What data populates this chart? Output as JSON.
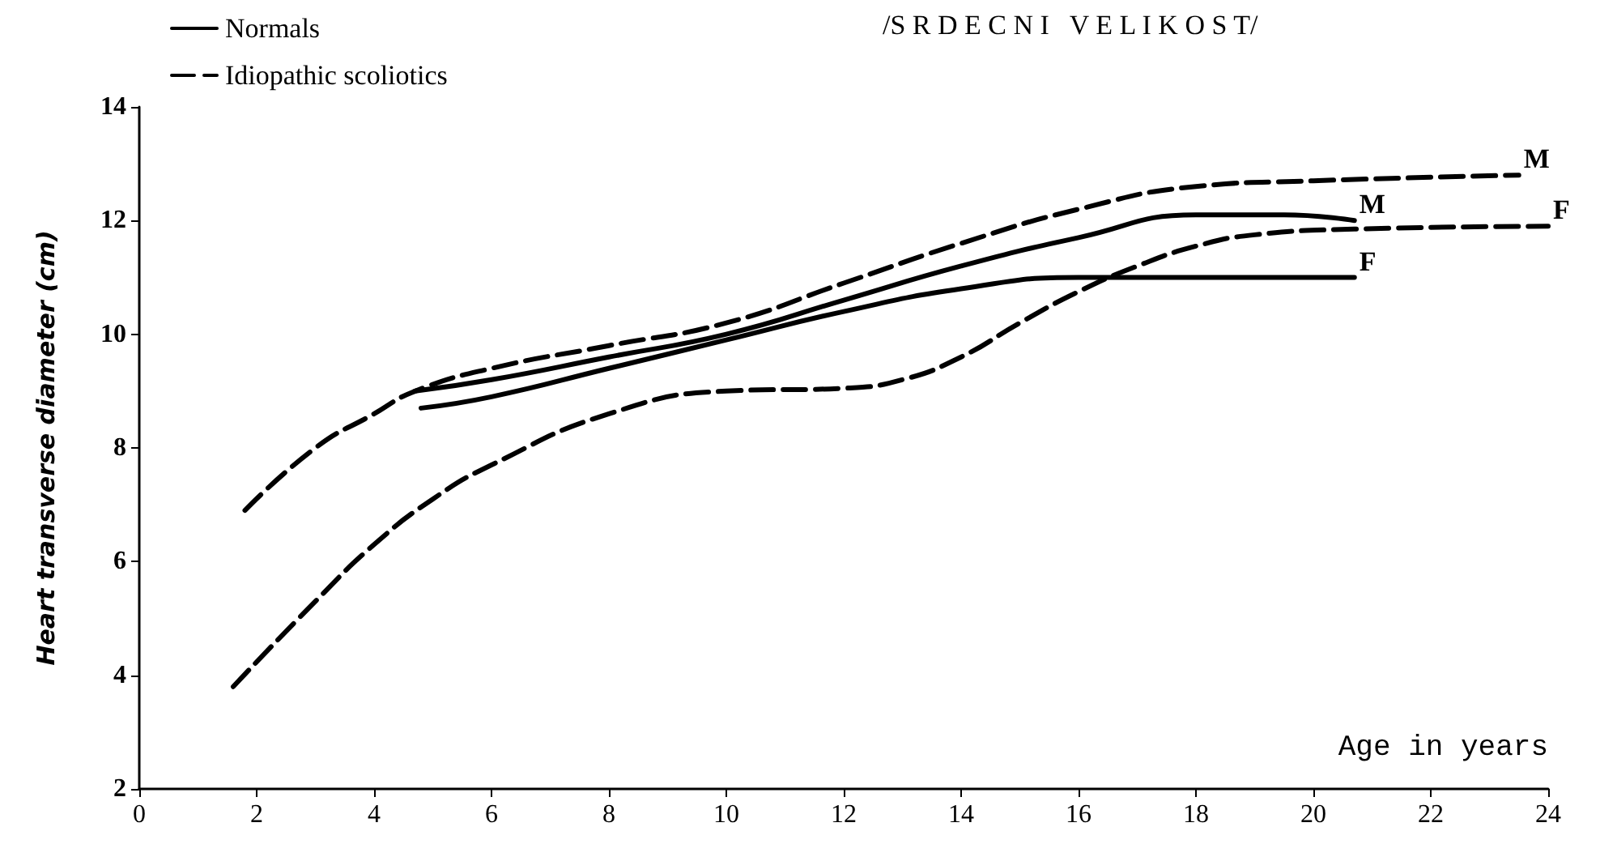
{
  "chart_data": {
    "type": "line",
    "title": "/S R D E C N I   V E L I K O S T/",
    "xlabel": "Age in years",
    "ylabel": "Heart transverse diameter (cm)",
    "xlim": [
      0,
      24
    ],
    "xticks": [
      0,
      2,
      4,
      6,
      8,
      10,
      12,
      14,
      16,
      18,
      20,
      22,
      24
    ],
    "ylim": [
      2,
      14
    ],
    "yticks": [
      2,
      4,
      6,
      8,
      10,
      12,
      14
    ],
    "grid": false,
    "legend": "top left",
    "marker": "none",
    "series": [
      {
        "name": "Normals",
        "color": "#000000",
        "line_style": "solid",
        "x": [
          4.7,
          6,
          8,
          10,
          12,
          14,
          16,
          18,
          19.5,
          20.7
        ],
        "values": [
          9.0,
          9.2,
          9.6,
          10.0,
          10.6,
          11.2,
          11.7,
          12.1,
          12.1,
          12.0
        ]
      },
      {
        "color": "#000000",
        "line_style": "solid",
        "x": [
          4.8,
          6,
          8,
          10,
          12,
          14,
          16,
          18,
          20.7
        ],
        "values": [
          8.7,
          8.9,
          9.4,
          9.9,
          10.4,
          10.8,
          11.0,
          11.0,
          11.0
        ]
      },
      {
        "name": "Idiopathic scoliotics",
        "color": "#000000",
        "line_style": "dashed",
        "x": [
          1.8,
          3,
          4,
          4.7,
          6,
          8,
          10,
          12,
          14,
          16,
          18,
          20,
          23.5
        ],
        "values": [
          6.9,
          8.0,
          8.6,
          9.0,
          9.4,
          9.8,
          10.2,
          10.9,
          11.6,
          12.2,
          12.6,
          12.7,
          12.8
        ]
      },
      {
        "color": "#000000",
        "line_style": "dashed",
        "x": [
          1.6,
          3,
          4,
          5,
          6,
          8,
          10,
          12,
          13,
          14,
          15,
          16,
          17,
          18,
          19,
          20.7,
          24
        ],
        "values": [
          3.8,
          5.3,
          6.3,
          7.1,
          7.7,
          8.6,
          9.0,
          9.05,
          9.2,
          9.6,
          10.2,
          10.75,
          11.2,
          11.55,
          11.75,
          11.85,
          11.9
        ]
      }
    ],
    "annotations": [
      {
        "text": "M",
        "x": 23.5,
        "y": 12.8
      },
      {
        "text": "M",
        "x": 20.7,
        "y": 12.0
      },
      {
        "text": "F",
        "x": 24,
        "y": 11.9
      },
      {
        "text": "F",
        "x": 20.7,
        "y": 11.0
      }
    ]
  }
}
